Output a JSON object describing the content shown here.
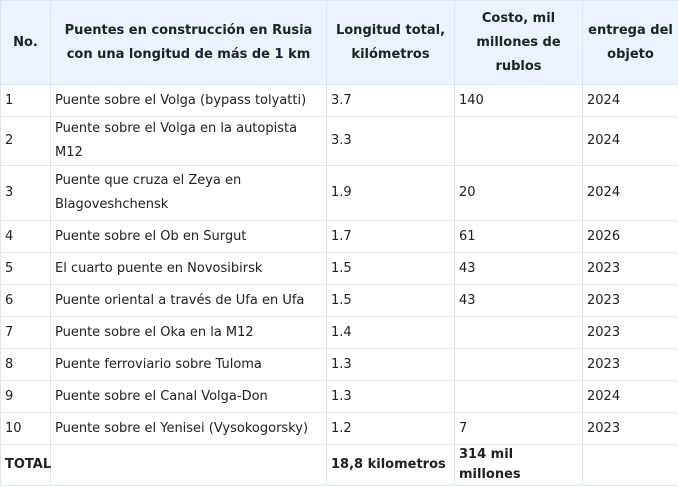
{
  "table": {
    "headers": [
      "No.",
      "Puentes en construcción en Rusia con una longitud de más de 1 km",
      "Longitud total, kilómetros",
      "Costo, mil millones de rublos",
      "entrega del objeto"
    ],
    "rows": [
      [
        "1",
        "Puente sobre el Volga (bypass tolyatti)",
        "3.7",
        "140",
        "2024"
      ],
      [
        "2",
        "Puente sobre el Volga en la autopista M12",
        "3.3",
        "",
        "2024"
      ],
      [
        "3",
        "Puente que cruza el Zeya en Blagoveshchensk",
        "1.9",
        "20",
        "2024"
      ],
      [
        "4",
        "Puente sobre el Ob en Surgut",
        "1.7",
        "61",
        "2026"
      ],
      [
        "5",
        "El cuarto puente en Novosibirsk",
        "1.5",
        "43",
        "2023"
      ],
      [
        "6",
        "Puente oriental a través de Ufa en Ufa",
        "1.5",
        "43",
        "2023"
      ],
      [
        "7",
        "Puente sobre el Oka en la M12",
        "1.4",
        "",
        "2023"
      ],
      [
        "8",
        "Puente ferroviario sobre Tuloma",
        "1.3",
        "",
        "2023"
      ],
      [
        "9",
        "Puente sobre el Canal Volga-Don",
        "1.3",
        "",
        "2024"
      ],
      [
        "10",
        "Puente sobre el Yenisei (Vysokogorsky)",
        "1.2",
        "7",
        "2023"
      ]
    ],
    "total": [
      "TOTAL",
      "",
      "18,8 kilometros",
      "314 mil millones",
      ""
    ]
  }
}
